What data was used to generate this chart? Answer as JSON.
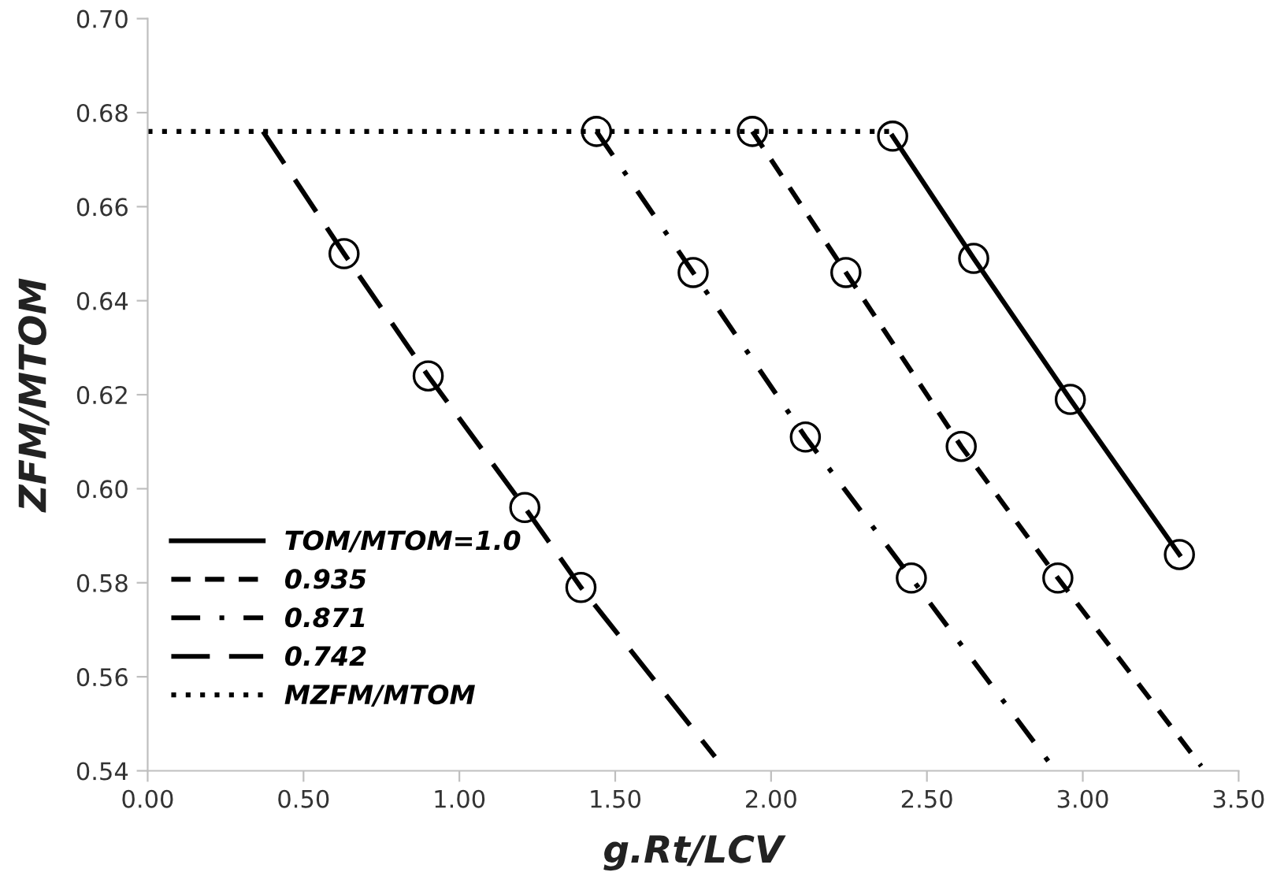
{
  "chart_data": {
    "type": "line",
    "xlabel": "g.Rt/LCV",
    "ylabel": "ZFM/MTOM",
    "xlim": [
      0,
      3.5
    ],
    "ylim": [
      0.54,
      0.7
    ],
    "xticks": [
      {
        "value": 0,
        "label": "0.00"
      },
      {
        "value": 0.5,
        "label": "0.50"
      },
      {
        "value": 1.0,
        "label": "1.00"
      },
      {
        "value": 1.5,
        "label": "1.50"
      },
      {
        "value": 2.0,
        "label": "2.00"
      },
      {
        "value": 2.5,
        "label": "2.50"
      },
      {
        "value": 3.0,
        "label": "3.00"
      },
      {
        "value": 3.5,
        "label": "3.50"
      }
    ],
    "yticks": [
      {
        "value": 0.54,
        "label": "0.54"
      },
      {
        "value": 0.56,
        "label": "0.56"
      },
      {
        "value": 0.58,
        "label": "0.58"
      },
      {
        "value": 0.6,
        "label": "0.60"
      },
      {
        "value": 0.62,
        "label": "0.62"
      },
      {
        "value": 0.64,
        "label": "0.64"
      },
      {
        "value": 0.66,
        "label": "0.66"
      },
      {
        "value": 0.68,
        "label": "0.68"
      },
      {
        "value": 0.7,
        "label": "0.70"
      }
    ],
    "grid": false,
    "legend": "bottom left",
    "series": [
      {
        "name": "TOM/MTOM=1.0",
        "color": "#000000",
        "line_style": "solid",
        "marker": "none",
        "x": [
          2.39,
          2.65,
          2.96,
          3.31
        ],
        "values": [
          0.675,
          0.649,
          0.619,
          0.586
        ]
      },
      {
        "name": "0.935",
        "color": "#000000",
        "line_style": "dashed",
        "marker": "none",
        "x": [
          1.94,
          2.24,
          2.61,
          2.92,
          3.38
        ],
        "values": [
          0.676,
          0.646,
          0.609,
          0.581,
          0.541
        ]
      },
      {
        "name": "0.871",
        "color": "#000000",
        "line_style": "dashdot",
        "marker": "none",
        "x": [
          1.44,
          1.75,
          2.11,
          2.45,
          2.89
        ],
        "values": [
          0.676,
          0.646,
          0.611,
          0.581,
          0.542
        ]
      },
      {
        "name": "0.742",
        "color": "#000000",
        "line_style": "longdash",
        "marker": "none",
        "x": [
          0.37,
          0.63,
          0.9,
          1.21,
          1.39,
          1.82
        ],
        "values": [
          0.676,
          0.65,
          0.624,
          0.596,
          0.579,
          0.543
        ]
      },
      {
        "name": "MZFM/MTOM",
        "color": "#000000",
        "line_style": "dotted",
        "marker": "none",
        "x": [
          0.0,
          2.39
        ],
        "values": [
          0.676,
          0.676
        ]
      },
      {
        "type": "scatter",
        "color": "#000000",
        "marker": "circle",
        "x": [
          2.39,
          2.65,
          2.96,
          3.31,
          1.94,
          2.24,
          2.61,
          2.92,
          1.44,
          1.75,
          2.11,
          2.45,
          0.63,
          0.9,
          1.21,
          1.39
        ],
        "values": [
          0.675,
          0.649,
          0.619,
          0.586,
          0.676,
          0.646,
          0.609,
          0.581,
          0.676,
          0.646,
          0.611,
          0.581,
          0.65,
          0.624,
          0.596,
          0.579
        ]
      }
    ]
  }
}
